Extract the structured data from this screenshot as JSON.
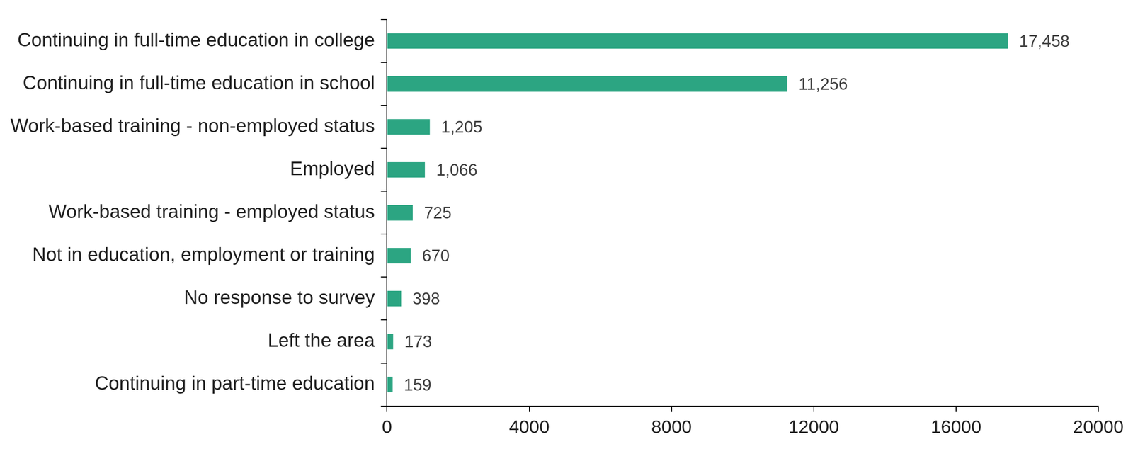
{
  "chart_data": {
    "type": "bar",
    "orientation": "horizontal",
    "categories": [
      "Continuing in full-time education in college",
      "Continuing in full-time education in school",
      "Work-based training - non-employed status",
      "Employed",
      "Work-based training - employed status",
      "Not in education, employment or training",
      "No response to survey",
      "Left the area",
      "Continuing in part-time education"
    ],
    "values": [
      17458,
      11256,
      1205,
      1066,
      725,
      670,
      398,
      173,
      159
    ],
    "value_labels": [
      "17,458",
      "11,256",
      "1,205",
      "1,066",
      "725",
      "670",
      "398",
      "173",
      "159"
    ],
    "color": "#2ca582",
    "xlim": [
      0,
      20000
    ],
    "xticks": [
      0,
      4000,
      8000,
      12000,
      16000,
      20000
    ],
    "grid": false,
    "data_labels": true
  }
}
